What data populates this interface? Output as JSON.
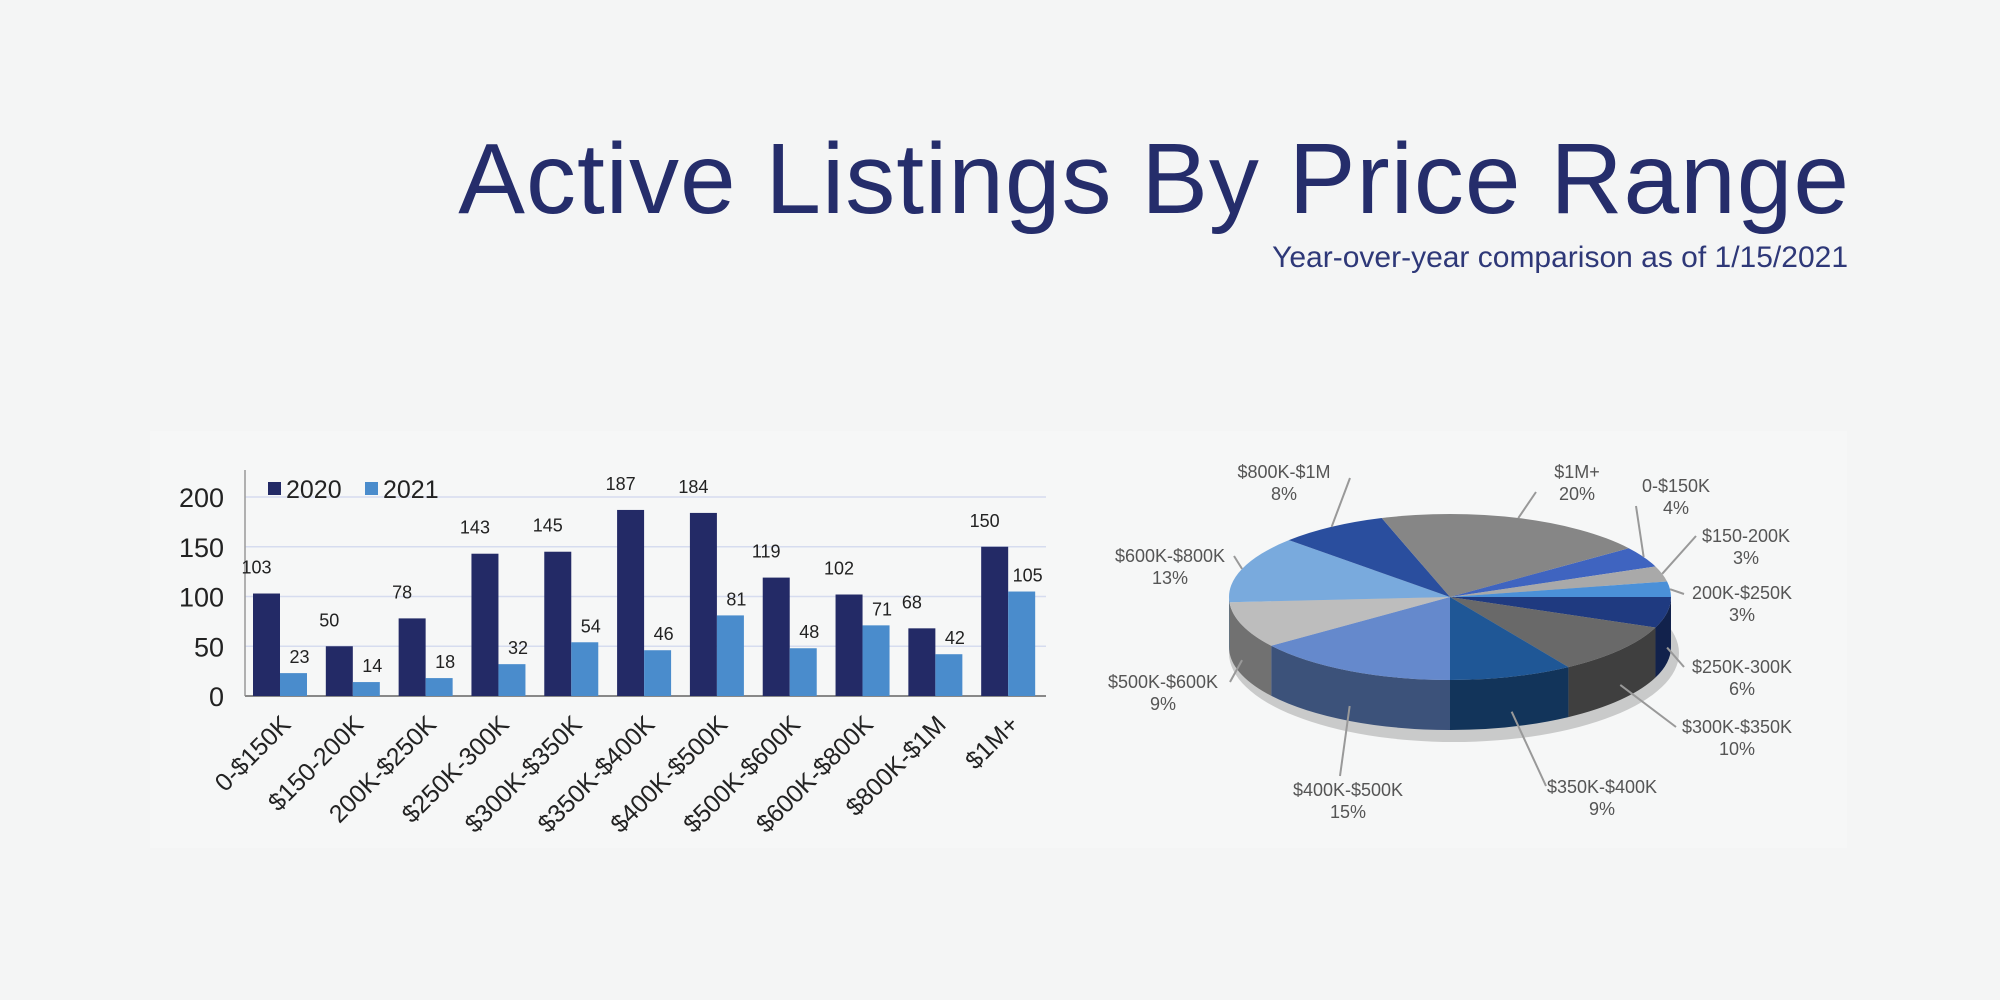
{
  "header": {
    "title": "Active Listings By Price Range",
    "subtitle": "Year-over-year comparison as of 1/15/2021"
  },
  "chart_data": [
    {
      "type": "bar",
      "categories": [
        "0-$150K",
        "$150-200K",
        "200K-$250K",
        "$250K-300K",
        "$300K-$350K",
        "$350K-$400K",
        "$400K-$500K",
        "$500K-$600K",
        "$600K-$800K",
        "$800K-$1M",
        "$1M+"
      ],
      "series": [
        {
          "name": "2020",
          "color": "#232a66",
          "values": [
            103,
            50,
            78,
            143,
            145,
            187,
            184,
            119,
            102,
            68,
            150
          ]
        },
        {
          "name": "2021",
          "color": "#4a8ccc",
          "values": [
            23,
            14,
            18,
            32,
            54,
            46,
            81,
            48,
            71,
            42,
            105
          ]
        }
      ],
      "yticks": [
        0,
        50,
        100,
        150,
        200
      ],
      "ylim": [
        0,
        220
      ],
      "grid": true,
      "legend": "top-left",
      "data_labels": true
    },
    {
      "type": "pie",
      "style": "3d",
      "slices": [
        {
          "label": "0-$150K",
          "pct": "4%",
          "value": 4,
          "color": "#3f64c0"
        },
        {
          "label": "$150-200K",
          "pct": "3%",
          "value": 3,
          "color": "#a9a9a9"
        },
        {
          "label": "200K-$250K",
          "pct": "3%",
          "value": 3,
          "color": "#4b90d8"
        },
        {
          "label": "$250K-300K",
          "pct": "6%",
          "value": 6,
          "color": "#1f3a80"
        },
        {
          "label": "$300K-$350K",
          "pct": "10%",
          "value": 10,
          "color": "#696969"
        },
        {
          "label": "$350K-$400K",
          "pct": "9%",
          "value": 9,
          "color": "#1f5796"
        },
        {
          "label": "$400K-$500K",
          "pct": "15%",
          "value": 15,
          "color": "#6589cc"
        },
        {
          "label": "$500K-$600K",
          "pct": "9%",
          "value": 9,
          "color": "#bdbdbd"
        },
        {
          "label": "$600K-$800K",
          "pct": "13%",
          "value": 13,
          "color": "#79aadd"
        },
        {
          "label": "$800K-$1M",
          "pct": "8%",
          "value": 8,
          "color": "#2a4e9e"
        },
        {
          "label": "$1M+",
          "pct": "20%",
          "value": 20,
          "color": "#868686"
        }
      ]
    }
  ]
}
